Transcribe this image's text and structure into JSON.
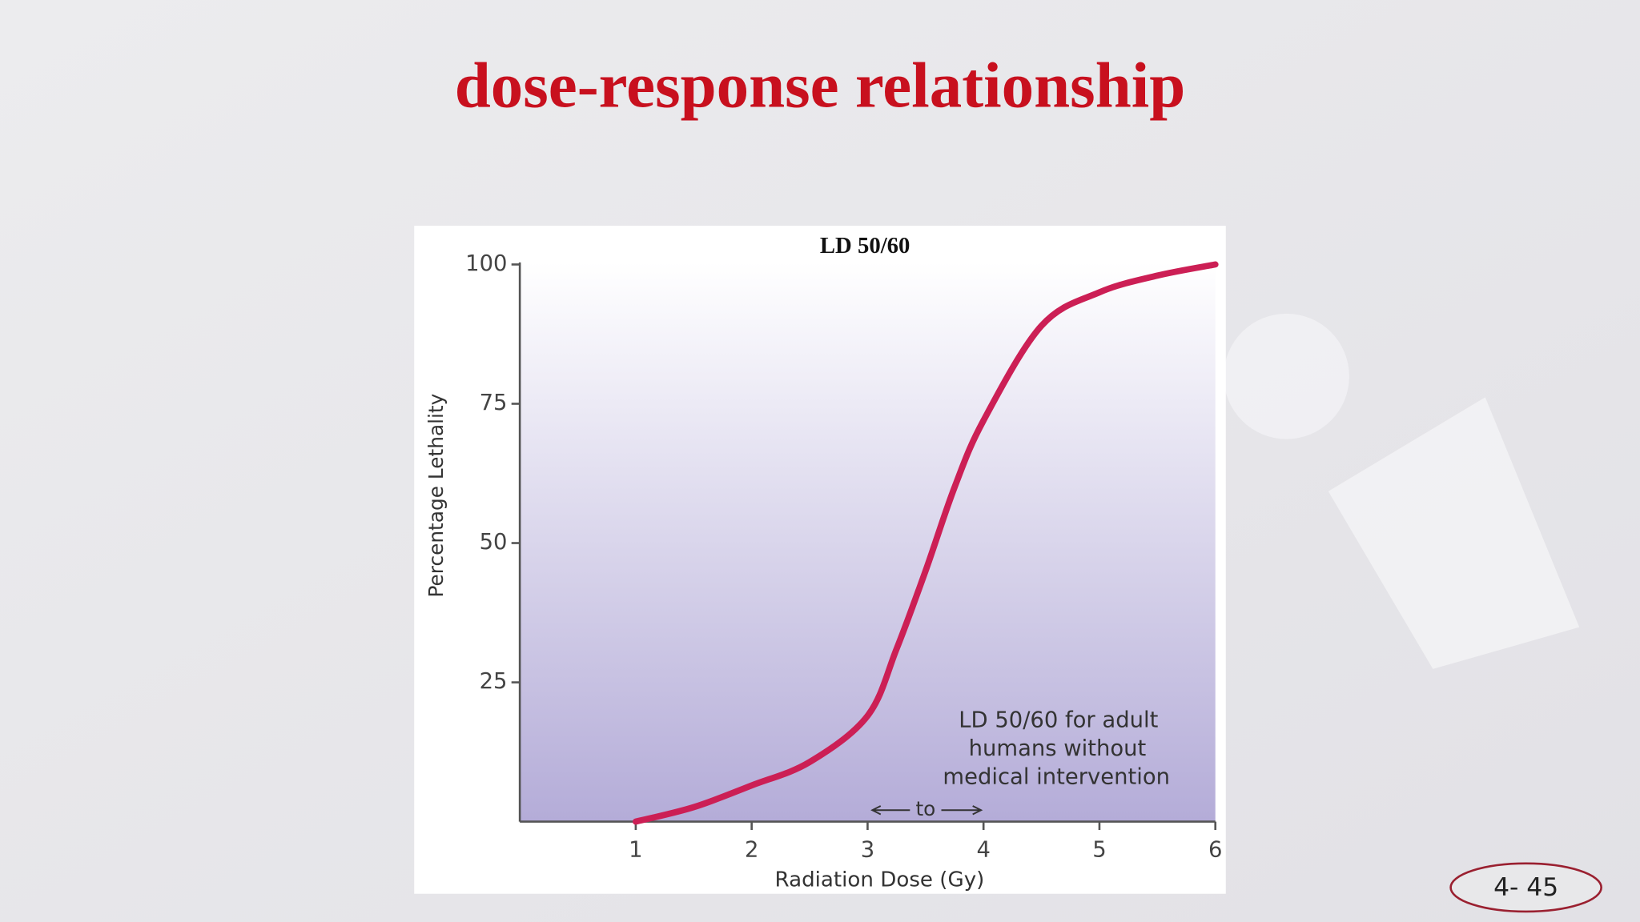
{
  "chart_data": {
    "type": "line",
    "title": "dose-response relationship",
    "xlabel": "Radiation Dose (Gy)",
    "ylabel": "Percentage Lethality",
    "annotations": [
      "LD 50/60",
      "LD 50/60 for adult",
      "humans without",
      "medical intervention",
      "to"
    ],
    "x": [
      1,
      1.5,
      2,
      2.5,
      3,
      3.25,
      3.5,
      3.75,
      4,
      4.5,
      5,
      5.5,
      6
    ],
    "values": [
      0,
      2.6,
      6.5,
      10.7,
      19,
      31,
      45,
      60,
      72,
      89,
      95,
      98,
      100
    ],
    "color": "#cc1f55",
    "xlim": [
      0,
      6
    ],
    "xticks": [
      1,
      2,
      3,
      4,
      5,
      6
    ],
    "ylim": [
      0,
      100
    ],
    "yticks": [
      25,
      50,
      75,
      100
    ]
  },
  "slide_number": "4- 45"
}
